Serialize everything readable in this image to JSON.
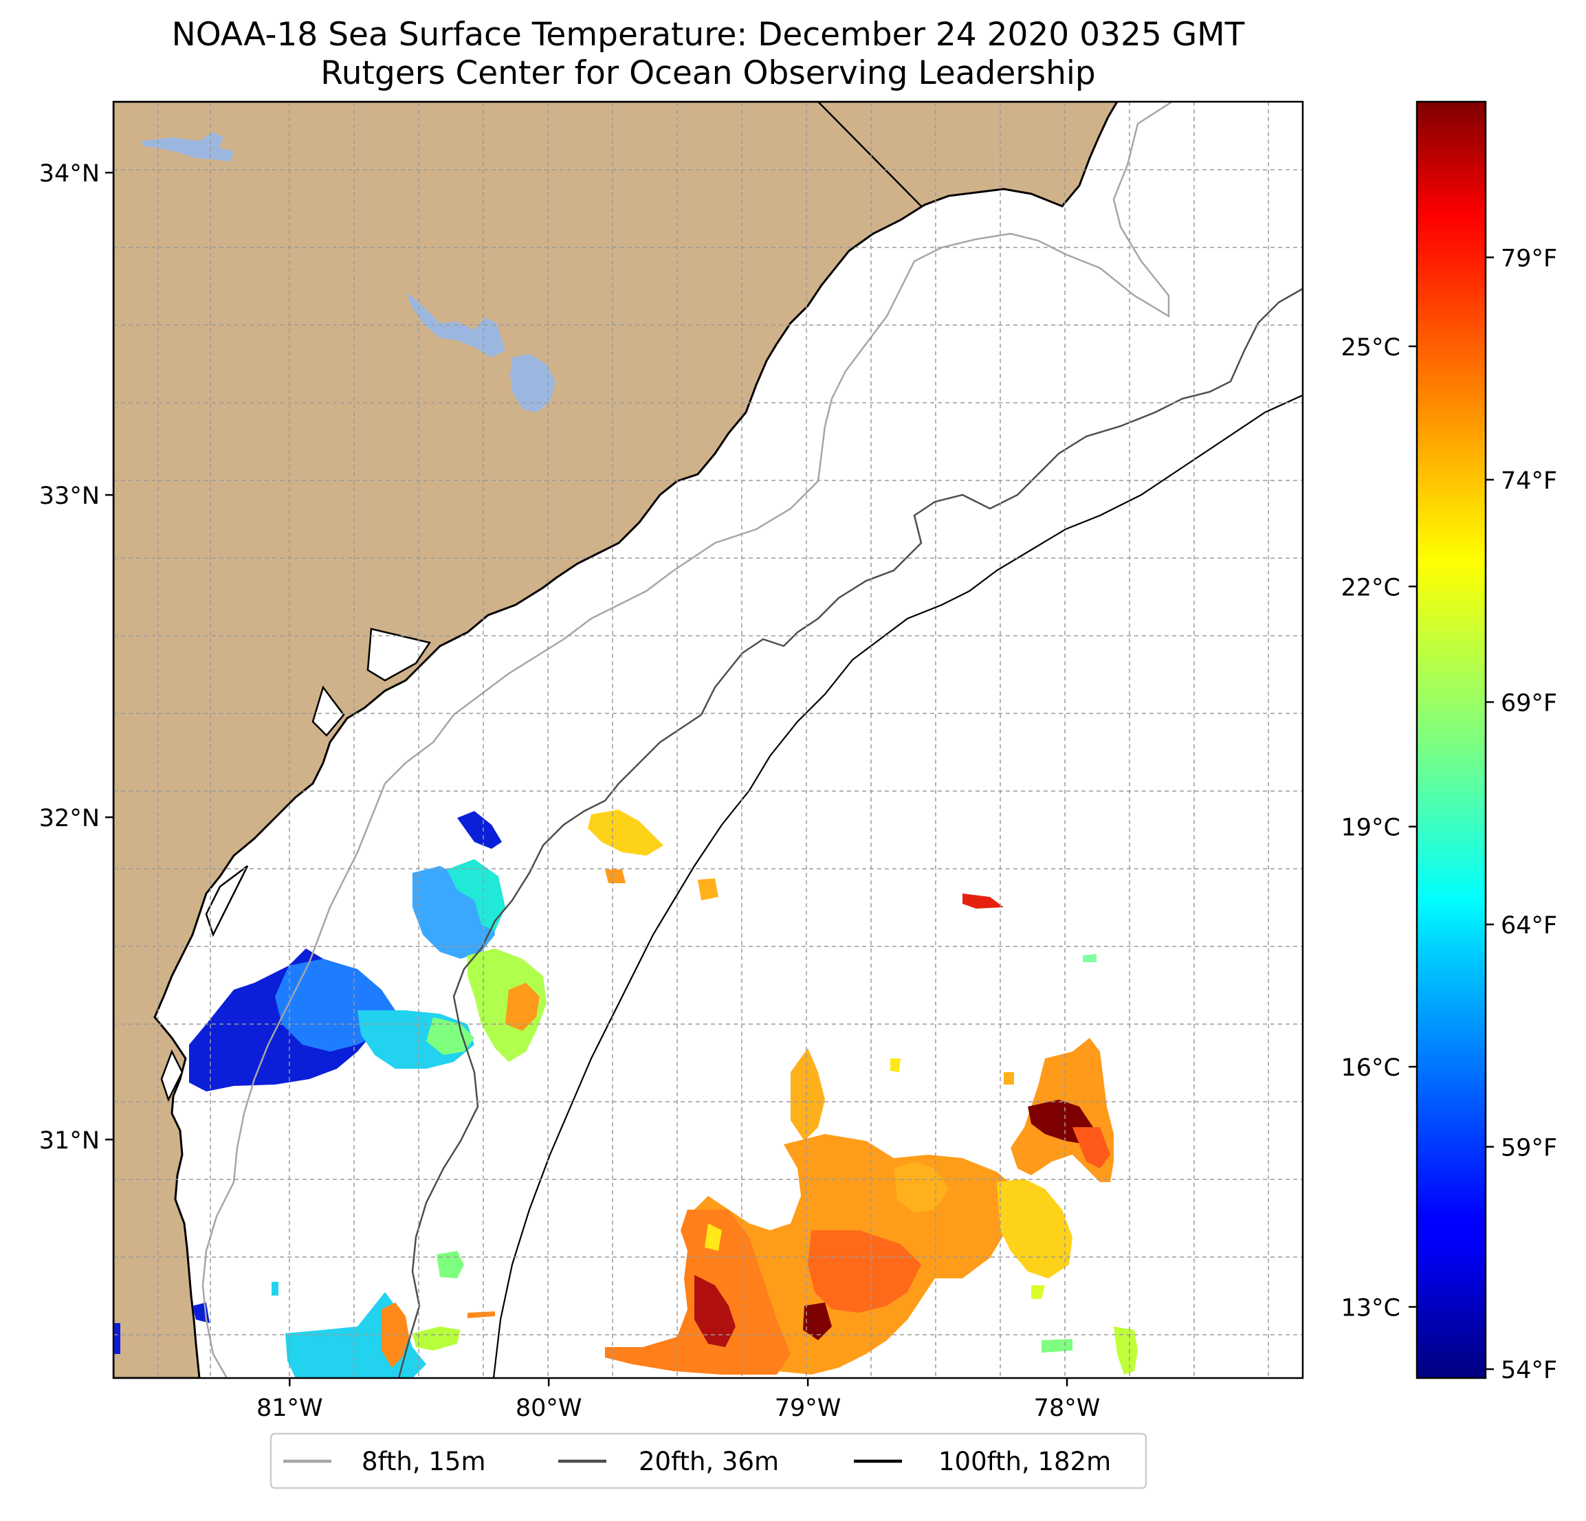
{
  "title_line1": "NOAA-18 Sea Surface Temperature: December 24 2020 0325 GMT",
  "title_line2": "Rutgers Center for Ocean Observing Leadership",
  "map": {
    "extent": {
      "lon": [
        -81.68,
        -77.09
      ],
      "lat": [
        30.26,
        34.22
      ]
    },
    "lon_ticks": [
      {
        "value": -81,
        "label": "81°W"
      },
      {
        "value": -80,
        "label": "80°W"
      },
      {
        "value": -79,
        "label": "79°W"
      },
      {
        "value": -78,
        "label": "78°W"
      }
    ],
    "lat_ticks": [
      {
        "value": 34,
        "label": "34°N"
      },
      {
        "value": 33,
        "label": "33°N"
      },
      {
        "value": 32,
        "label": "32°N"
      },
      {
        "value": 31,
        "label": "31°N"
      }
    ],
    "grid": true,
    "land_color": "#d0b28a",
    "lake_color": "#9bb7e0",
    "ocean_color": "#ffffff"
  },
  "colorbar": {
    "colormap": "jet",
    "range_f": [
      53.8,
      82.5
    ],
    "fahrenheit_ticks": [
      {
        "value": 79,
        "label": "79°F"
      },
      {
        "value": 74,
        "label": "74°F"
      },
      {
        "value": 69,
        "label": "69°F"
      },
      {
        "value": 64,
        "label": "64°F"
      },
      {
        "value": 59,
        "label": "59°F"
      },
      {
        "value": 54,
        "label": "54°F"
      }
    ],
    "celsius_ticks": [
      {
        "value": 25,
        "label": "25°C"
      },
      {
        "value": 22,
        "label": "22°C"
      },
      {
        "value": 19,
        "label": "19°C"
      },
      {
        "value": 16,
        "label": "16°C"
      },
      {
        "value": 13,
        "label": "13°C"
      }
    ]
  },
  "legend": {
    "placement": "bottom-center",
    "items": [
      {
        "label": "8fth, 15m",
        "color": "#a6a6a6"
      },
      {
        "label": "20fth, 36m",
        "color": "#4d4d4d"
      },
      {
        "label": "100fth, 182m",
        "color": "#000000"
      }
    ]
  }
}
